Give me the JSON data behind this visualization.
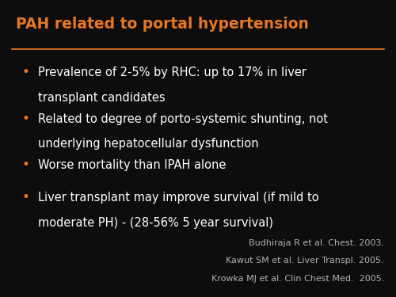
{
  "background_color": "#0d0d0d",
  "title": "PAH related to portal hypertension",
  "title_color": "#e87722",
  "title_fontsize": 13.5,
  "title_bold": true,
  "separator_color": "#e87722",
  "bullet_color": "#e87722",
  "text_color": "#ffffff",
  "bullet_fontsize": 10.5,
  "bullet_lines": [
    [
      "Prevalence of 2-5% by RHC: up to 17% in liver",
      "transplant candidates"
    ],
    [
      "Related to degree of porto-systemic shunting, not",
      "underlying hepatocellular dysfunction"
    ],
    [
      "Worse mortality than IPAH alone"
    ],
    [
      "Liver transplant may improve survival (if mild to",
      "moderate PH) - (28-56% 5 year survival)"
    ]
  ],
  "references": [
    "Budhiraja R et al. Chest. 2003.",
    "Kawut SM et al. Liver Transpl. 2005.",
    "Krowka MJ et al. Clin Chest Med.  2005."
  ],
  "ref_color": "#b0b0b8",
  "ref_fontsize": 8.0
}
